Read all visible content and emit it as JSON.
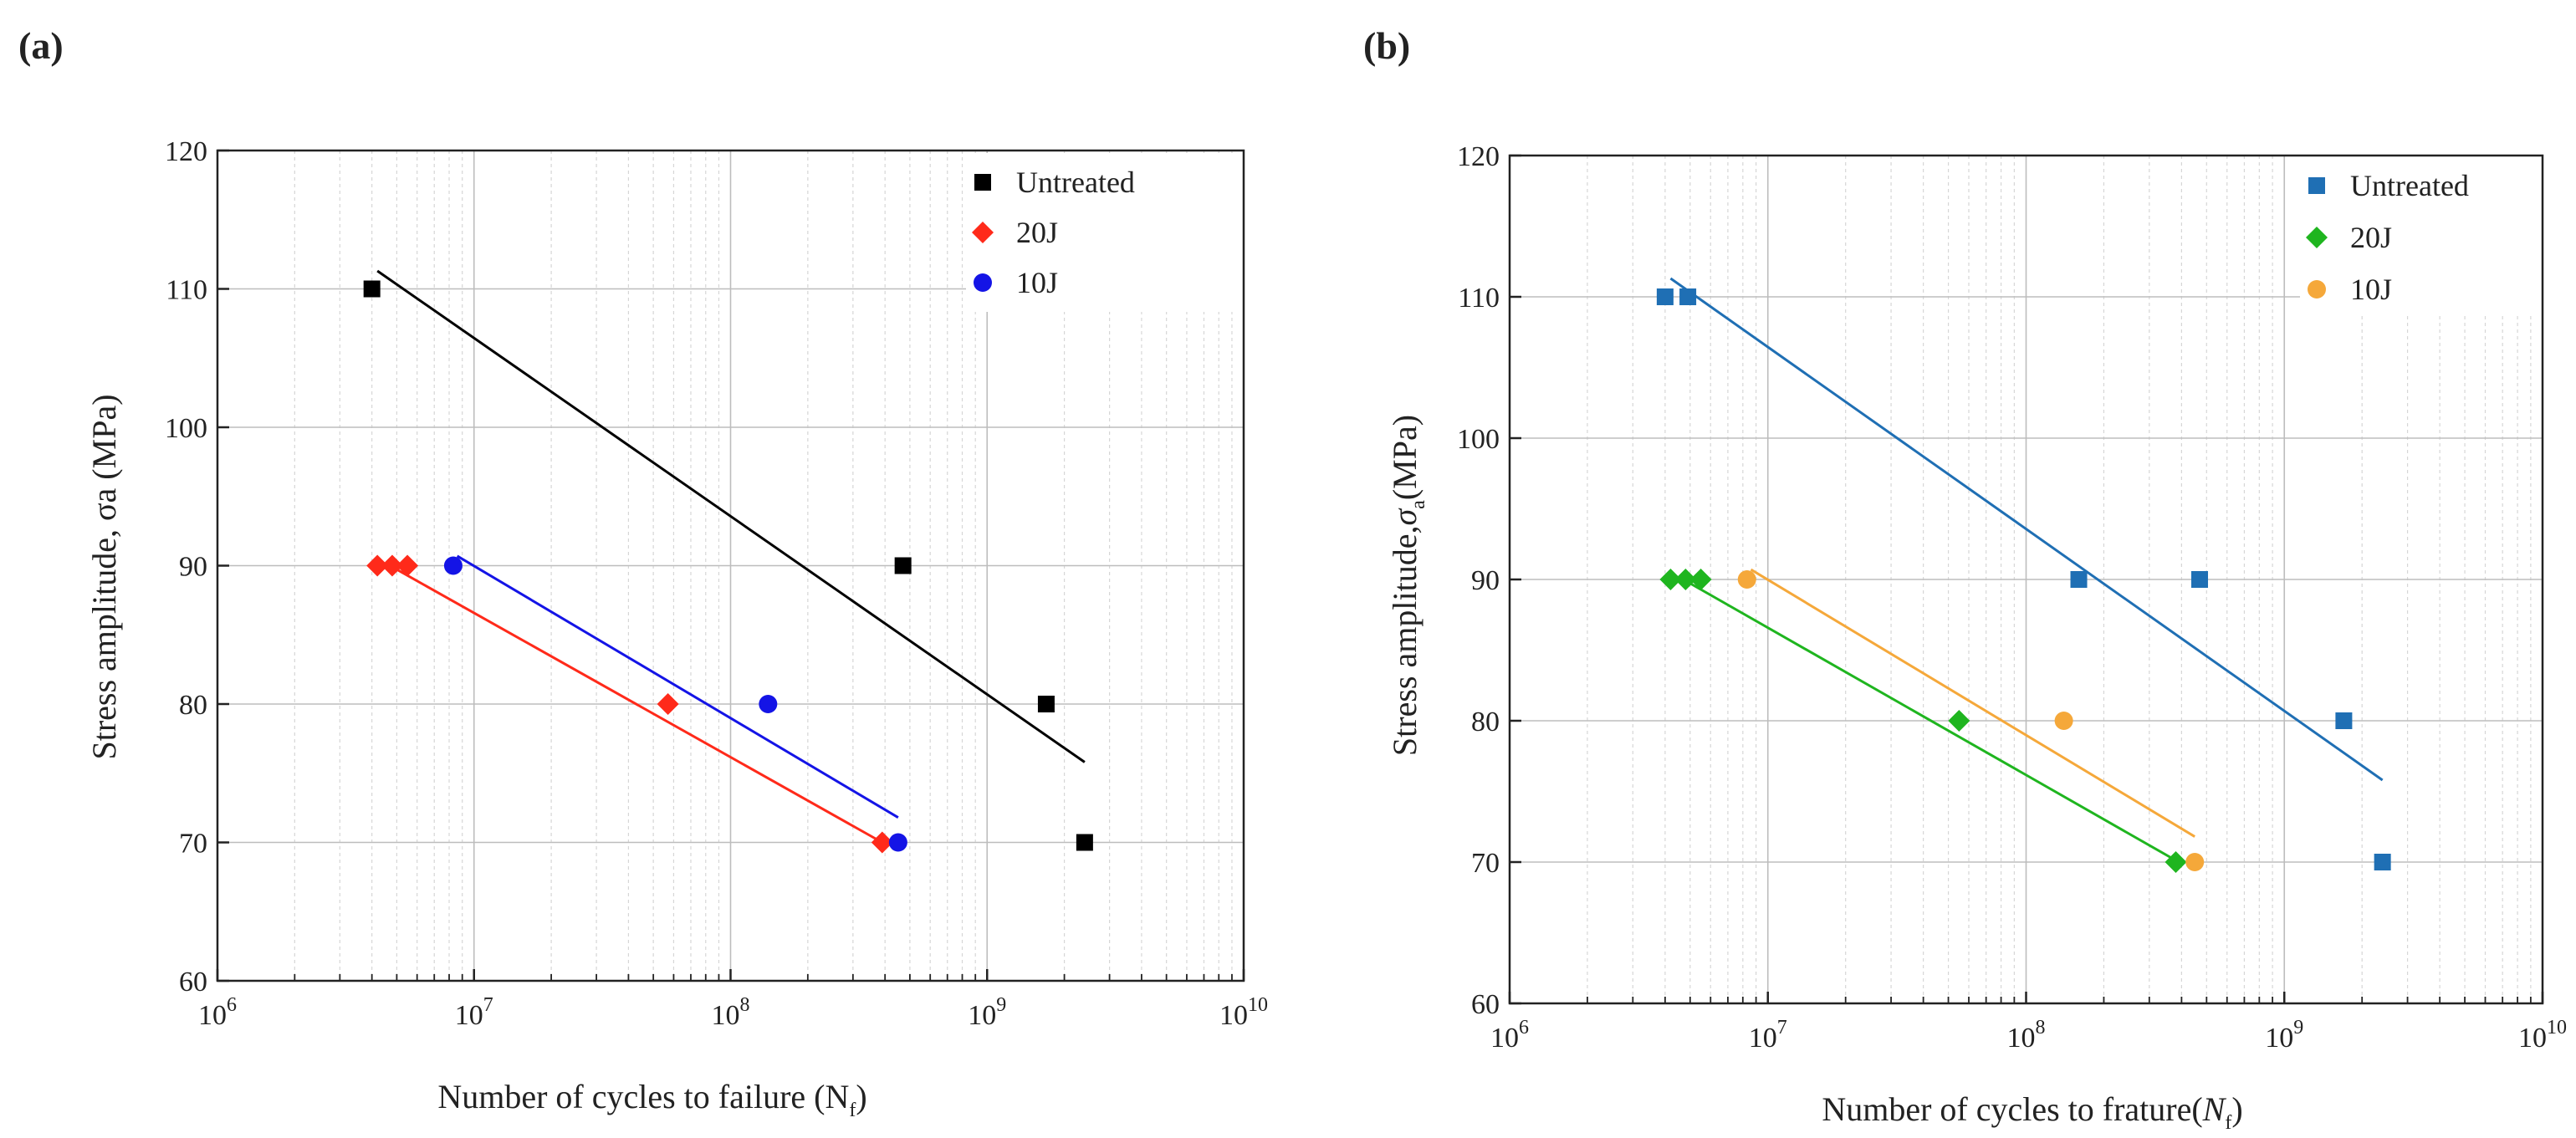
{
  "chart_data": [
    {
      "type": "scatter",
      "panel_label": "(a)",
      "title": "",
      "xlabel": "Number of cycles to failure (N",
      "xlabel_sub": "f",
      "xlabel_end": ")",
      "ylabel": "Stress amplitude, σa (MPa)",
      "xscale": "log",
      "xlim": [
        1000000,
        10000000000
      ],
      "ylim": [
        60,
        120
      ],
      "grid": true,
      "legend_position": "top-right",
      "x_tick_labels": [
        {
          "base": "10",
          "exp": "6"
        },
        {
          "base": "10",
          "exp": "7"
        },
        {
          "base": "10",
          "exp": "8"
        },
        {
          "base": "10",
          "exp": "9"
        },
        {
          "base": "10",
          "exp": "10"
        }
      ],
      "y_ticks": [
        60,
        70,
        80,
        90,
        100,
        110,
        120
      ],
      "series": [
        {
          "name": "Untreated",
          "marker": "square",
          "color": "#000000",
          "points": [
            [
              4000000,
              110
            ],
            [
              470000000,
              90
            ],
            [
              1700000000,
              80
            ],
            [
              2400000000,
              70
            ]
          ],
          "fit": [
            [
              4200000,
              111.3
            ],
            [
              2400000000,
              75.8
            ]
          ]
        },
        {
          "name": "20J",
          "marker": "diamond",
          "color": "#ff2a1a",
          "points": [
            [
              4200000,
              90
            ],
            [
              4800000,
              90
            ],
            [
              5500000,
              90
            ],
            [
              57000000,
              80
            ],
            [
              390000000,
              70
            ]
          ],
          "fit": [
            [
              4500000,
              90.2
            ],
            [
              390000000,
              70
            ]
          ]
        },
        {
          "name": "10J",
          "marker": "circle",
          "color": "#1414e6",
          "points": [
            [
              8300000,
              90
            ],
            [
              140000000,
              80
            ],
            [
              450000000,
              70
            ]
          ],
          "fit": [
            [
              8600000,
              90.7
            ],
            [
              450000000,
              71.8
            ]
          ]
        }
      ]
    },
    {
      "type": "scatter",
      "panel_label": "(b)",
      "title": "",
      "xlabel": "Number of cycles to frature(",
      "xlabel_sub": "f",
      "xlabel_italic": "N",
      "xlabel_end": ")",
      "ylabel": "Stress amplitude,",
      "ylabel_sigma": "σ",
      "ylabel_sub": "a",
      "ylabel_end": "(MPa)",
      "xscale": "log",
      "xlim": [
        1000000,
        10000000000
      ],
      "ylim": [
        60,
        120
      ],
      "grid": true,
      "legend_position": "top-right",
      "x_tick_labels": [
        {
          "base": "10",
          "exp": "6"
        },
        {
          "base": "10",
          "exp": "7"
        },
        {
          "base": "10",
          "exp": "8"
        },
        {
          "base": "10",
          "exp": "9"
        },
        {
          "base": "10",
          "exp": "10"
        }
      ],
      "y_ticks": [
        60,
        70,
        80,
        90,
        100,
        110,
        120
      ],
      "series": [
        {
          "name": "Untreated",
          "marker": "square",
          "color": "#1f6fb4",
          "points": [
            [
              4000000,
              110
            ],
            [
              4900000,
              110
            ],
            [
              160000000,
              90
            ],
            [
              470000000,
              90
            ],
            [
              1700000000,
              80
            ],
            [
              2400000000,
              70
            ]
          ],
          "fit": [
            [
              4200000,
              111.3
            ],
            [
              2400000000,
              75.8
            ]
          ]
        },
        {
          "name": "20J",
          "marker": "diamond",
          "color": "#1fb51f",
          "points": [
            [
              4200000,
              90
            ],
            [
              4800000,
              90
            ],
            [
              5500000,
              90
            ],
            [
              55000000,
              80
            ],
            [
              380000000,
              70
            ]
          ],
          "fit": [
            [
              4500000,
              90.2
            ],
            [
              390000000,
              70
            ]
          ]
        },
        {
          "name": "10J",
          "marker": "circle",
          "color": "#f5a83a",
          "points": [
            [
              8300000,
              90
            ],
            [
              140000000,
              80
            ],
            [
              450000000,
              70
            ]
          ],
          "fit": [
            [
              8600000,
              90.7
            ],
            [
              450000000,
              71.8
            ]
          ]
        }
      ]
    }
  ]
}
